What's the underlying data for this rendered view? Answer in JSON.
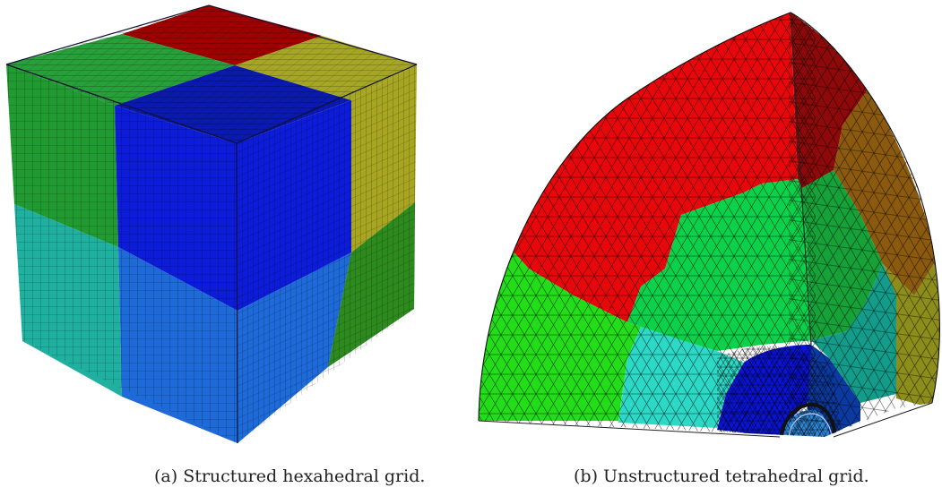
{
  "figure": {
    "subfigures": [
      {
        "caption": "(a)  Structured hexahedral grid.",
        "grid_type": "structured-hexahedral",
        "region_colors": {
          "top_back": "#a00000",
          "top_left": "#27a03a",
          "top_right": "#a6a626",
          "top_front": "#0a1ab0",
          "left_upper_left": "#229a32",
          "left_upper_right": "#0c1cd8",
          "left_lower_left": "#1fb0a0",
          "left_lower_right": "#1d6ad8",
          "right_upper_left": "#0c1cd8",
          "right_upper_right": "#a8a522",
          "right_lower_left": "#1d6ad8",
          "right_lower_right": "#2d8a1e"
        }
      },
      {
        "caption": "(b)  Unstructured tetrahedral grid.",
        "grid_type": "unstructured-tetrahedral",
        "region_colors": {
          "top": "#e8070b",
          "middle_green": "#0bd24a",
          "left_green": "#22dd17",
          "cyan": "#2bd9c6",
          "blue": "#0a14d8",
          "right_dark_red": "#8e0a0a",
          "right_brown": "#8b5a0f",
          "right_green": "#16a238",
          "right_teal": "#139c8a",
          "right_olive": "#8d8d1c",
          "inner_light_blue": "#2e86d6",
          "inner_dark": "#0b3aa0"
        }
      }
    ]
  }
}
